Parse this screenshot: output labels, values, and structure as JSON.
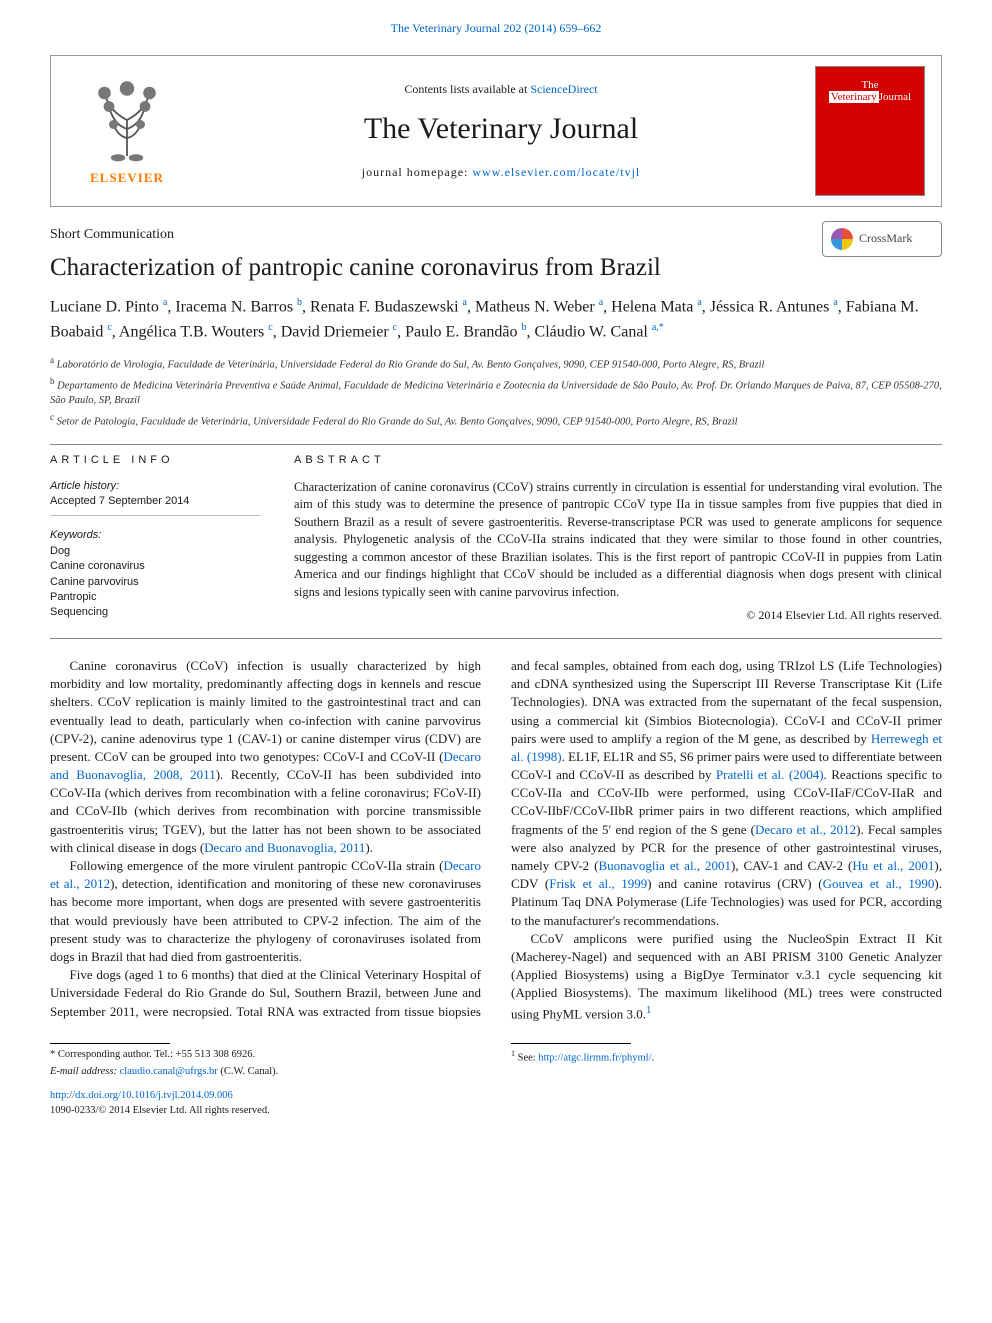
{
  "header_link": {
    "prefix": "",
    "text": "The Veterinary Journal 202 (2014) 659–662"
  },
  "masthead": {
    "contents_prefix": "Contents lists available at ",
    "contents_link": "ScienceDirect",
    "journal_name": "The Veterinary Journal",
    "homepage_label": "journal homepage: ",
    "homepage_url": "www.elsevier.com/locate/tvjl",
    "publisher_word": "ELSEVIER",
    "cover": {
      "line1": "The",
      "line2": "Veterinary",
      "line3": "Journal"
    }
  },
  "crossmark_label": "CrossMark",
  "article_type": "Short Communication",
  "title": "Characterization of pantropic canine coronavirus from Brazil",
  "authors_html": "Luciane D. Pinto <sup>a</sup>, Iracema N. Barros <sup>b</sup>, Renata F. Budaszewski <sup>a</sup>, Matheus N. Weber <sup>a</sup>, Helena Mata <sup>a</sup>, Jéssica R. Antunes <sup>a</sup>, Fabiana M. Boabaid <sup>c</sup>, Angélica T.B. Wouters <sup>c</sup>, David Driemeier <sup>c</sup>, Paulo E. Brandão <sup>b</sup>, Cláudio W. Canal <sup>a,*</sup>",
  "affiliations": {
    "a": "Laboratório de Virologia, Faculdade de Veterinária, Universidade Federal do Rio Grande do Sul, Av. Bento Gonçalves, 9090, CEP 91540-000, Porto Alegre, RS, Brazil",
    "b": "Departamento de Medicina Veterinária Preventiva e Saúde Animal, Faculdade de Medicina Veterinária e Zootecnia da Universidade de São Paulo, Av. Prof. Dr. Orlando Marques de Paiva, 87, CEP 05508-270, São Paulo, SP, Brazil",
    "c": "Setor de Patologia, Faculdade de Veterinária, Universidade Federal do Rio Grande do Sul, Av. Bento Gonçalves, 9090, CEP 91540-000, Porto Alegre, RS, Brazil"
  },
  "info": {
    "head": "ARTICLE INFO",
    "history_label": "Article history:",
    "history_value": "Accepted 7 September 2014",
    "keywords_label": "Keywords:",
    "keywords": [
      "Dog",
      "Canine coronavirus",
      "Canine parvovirus",
      "Pantropic",
      "Sequencing"
    ]
  },
  "abstract": {
    "head": "ABSTRACT",
    "text": "Characterization of canine coronavirus (CCoV) strains currently in circulation is essential for understanding viral evolution. The aim of this study was to determine the presence of pantropic CCoV type IIa in tissue samples from five puppies that died in Southern Brazil as a result of severe gastroenteritis. Reverse-transcriptase PCR was used to generate amplicons for sequence analysis. Phylogenetic analysis of the CCoV-IIa strains indicated that they were similar to those found in other countries, suggesting a common ancestor of these Brazilian isolates. This is the first report of pantropic CCoV-II in puppies from Latin America and our findings highlight that CCoV should be included as a differential diagnosis when dogs present with clinical signs and lesions typically seen with canine parvovirus infection.",
    "copyright": "© 2014 Elsevier Ltd. All rights reserved."
  },
  "body": {
    "p1a": "Canine coronavirus (CCoV) infection is usually characterized by high morbidity and low mortality, predominantly affecting dogs in kennels and rescue shelters. CCoV replication is mainly limited to the gastrointestinal tract and can eventually lead to death, particularly when co-infection with canine parvovirus (CPV-2), canine adenovirus type 1 (CAV-1) or canine distemper virus (CDV) are present. CCoV can be grouped into two genotypes: CCoV-I and CCoV-II (",
    "c1": "Decaro and Buonavoglia, 2008, 2011",
    "p1b": "). Recently, CCoV-II has been subdivided into CCoV-IIa (which derives from recombination with a feline coronavirus; FCoV-II) and CCoV-IIb (which derives from recombination with porcine transmissible gastroenteritis virus; TGEV), but the latter has not been shown to be associated with clinical disease in dogs (",
    "c2": "Decaro and Buonavoglia, 2011",
    "p1c": ").",
    "p2a": "Following emergence of the more virulent pantropic CCoV-IIa strain (",
    "c3": "Decaro et al., 2012",
    "p2b": "), detection, identification and monitoring of these new coronaviruses has become more important, when dogs are presented with severe gastroenteritis that would previously have been attributed to CPV-2 infection. The aim of the present study was to characterize the phylogeny of coronaviruses isolated from dogs in Brazil that had died from gastroenteritis.",
    "p3": "Five dogs (aged 1 to 6 months) that died at the Clinical Veterinary Hospital of Universidade Federal do Rio Grande do Sul, Southern Brazil, between June and September 2011, were necropsied. Total ",
    "p4a": "RNA was extracted from tissue biopsies and fecal samples, obtained from each dog, using TRIzol LS (Life Technologies) and cDNA synthesized using the Superscript III Reverse Transcriptase Kit (Life Technologies). DNA was extracted from the supernatant of the fecal suspension, using a commercial kit (Simbios Biotecnologia). CCoV-I and CCoV-II primer pairs were used to amplify a region of the M gene, as described by ",
    "c4": "Herrewegh et al. (1998)",
    "p4b": ". EL1F, EL1R and S5, S6 primer pairs were used to differentiate between CCoV-I and CCoV-II as described by ",
    "c5": "Pratelli et al. (2004)",
    "p4c": ". Reactions specific to CCoV-IIa and CCoV-IIb were performed, using CCoV-IIaF/CCoV-IIaR and CCoV-IIbF/CCoV-IIbR primer pairs in two different reactions, which amplified fragments of the 5′ end region of the S gene (",
    "c6": "Decaro et al., 2012",
    "p4d": "). Fecal samples were also analyzed by PCR for the presence of other gastrointestinal viruses, namely CPV-2 (",
    "c7": "Buonavoglia et al., 2001",
    "p4e": "), CAV-1 and CAV-2 (",
    "c8": "Hu et al., 2001",
    "p4f": "), CDV (",
    "c9": "Frisk et al., 1999",
    "p4g": ") and canine rotavirus (CRV) (",
    "c10": "Gouvea et al., 1990",
    "p4h": "). Platinum Taq DNA Polymerase (Life Technologies) was used for PCR, according to the manufacturer's recommendations.",
    "p5a": "CCoV amplicons were purified using the NucleoSpin Extract II Kit (Macherey-Nagel) and sequenced with an ABI PRISM 3100 Genetic Analyzer (Applied Biosystems) using a BigDye Terminator v.3.1 cycle sequencing kit (Applied Biosystems). The maximum likelihood (ML) trees were constructed using PhyML version 3.0.",
    "p5sup": "1"
  },
  "footnotes": {
    "left": {
      "corr_label": "* Corresponding author. Tel.: +55 513 308 6926.",
      "email_label": "E-mail address: ",
      "email": "claudio.canal@ufrgs.br",
      "email_suffix": " (C.W. Canal)."
    },
    "right": {
      "fn1_label": "1",
      "fn1_prefix": " See: ",
      "fn1_link": "http://atgc.lirmm.fr/phyml/",
      "fn1_suffix": "."
    }
  },
  "doi": {
    "link": "http://dx.doi.org/10.1016/j.tvjl.2014.09.006",
    "issn_line": "1090-0233/© 2014 Elsevier Ltd. All rights reserved."
  },
  "colors": {
    "link": "#0066cc",
    "cover_bg": "#d40000",
    "elsevier_orange": "#ff7a00",
    "rule": "#888888",
    "text": "#1a1a1a"
  }
}
